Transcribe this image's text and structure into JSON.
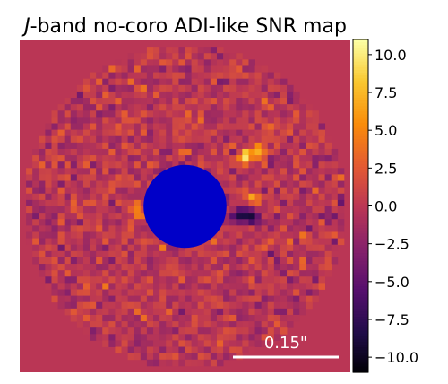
{
  "chart_data": {
    "type": "heatmap",
    "title_prefix": "J",
    "title_rest": "-band no-coro ADI-like SNR map",
    "colormap": "inferno",
    "grid": false,
    "legend": "colorbar right",
    "colorbar": {
      "vmin": -11,
      "vmax": 11,
      "ticks": [
        10.0,
        7.5,
        5.0,
        2.5,
        0.0,
        -2.5,
        -5.0,
        -7.5,
        -10.0
      ],
      "tick_labels": [
        "10.0",
        "7.5",
        "5.0",
        "2.5",
        "0.0",
        "−2.5",
        "−5.0",
        "−7.5",
        "−10.0"
      ]
    },
    "background_value": 0.0,
    "mask_color": "#0000c8",
    "scalebar_label": "0.15\"",
    "scalebar_color": "#ffffff",
    "features": [
      {
        "type": "bright_blob",
        "gx": 35,
        "gy": 18,
        "value": 9.5
      },
      {
        "type": "bright_blob",
        "gx": 37,
        "gy": 17,
        "value": 7.5
      },
      {
        "type": "bright_blob",
        "gx": 36,
        "gy": 24,
        "value": 5.5
      },
      {
        "type": "bright_blob",
        "gx": 24,
        "gy": 22,
        "value": 5.0
      },
      {
        "type": "bright_blob",
        "gx": 18,
        "gy": 26,
        "value": 5.5
      },
      {
        "type": "bright_blob",
        "gx": 22,
        "gy": 28,
        "value": 4.5
      },
      {
        "type": "dark_blob",
        "gx": 34,
        "gy": 27,
        "value": -10.5
      },
      {
        "type": "dark_blob",
        "gx": 36,
        "gy": 27,
        "value": -7.0
      },
      {
        "type": "dark_blob",
        "gx": 23,
        "gy": 29,
        "value": -8.5
      }
    ]
  }
}
